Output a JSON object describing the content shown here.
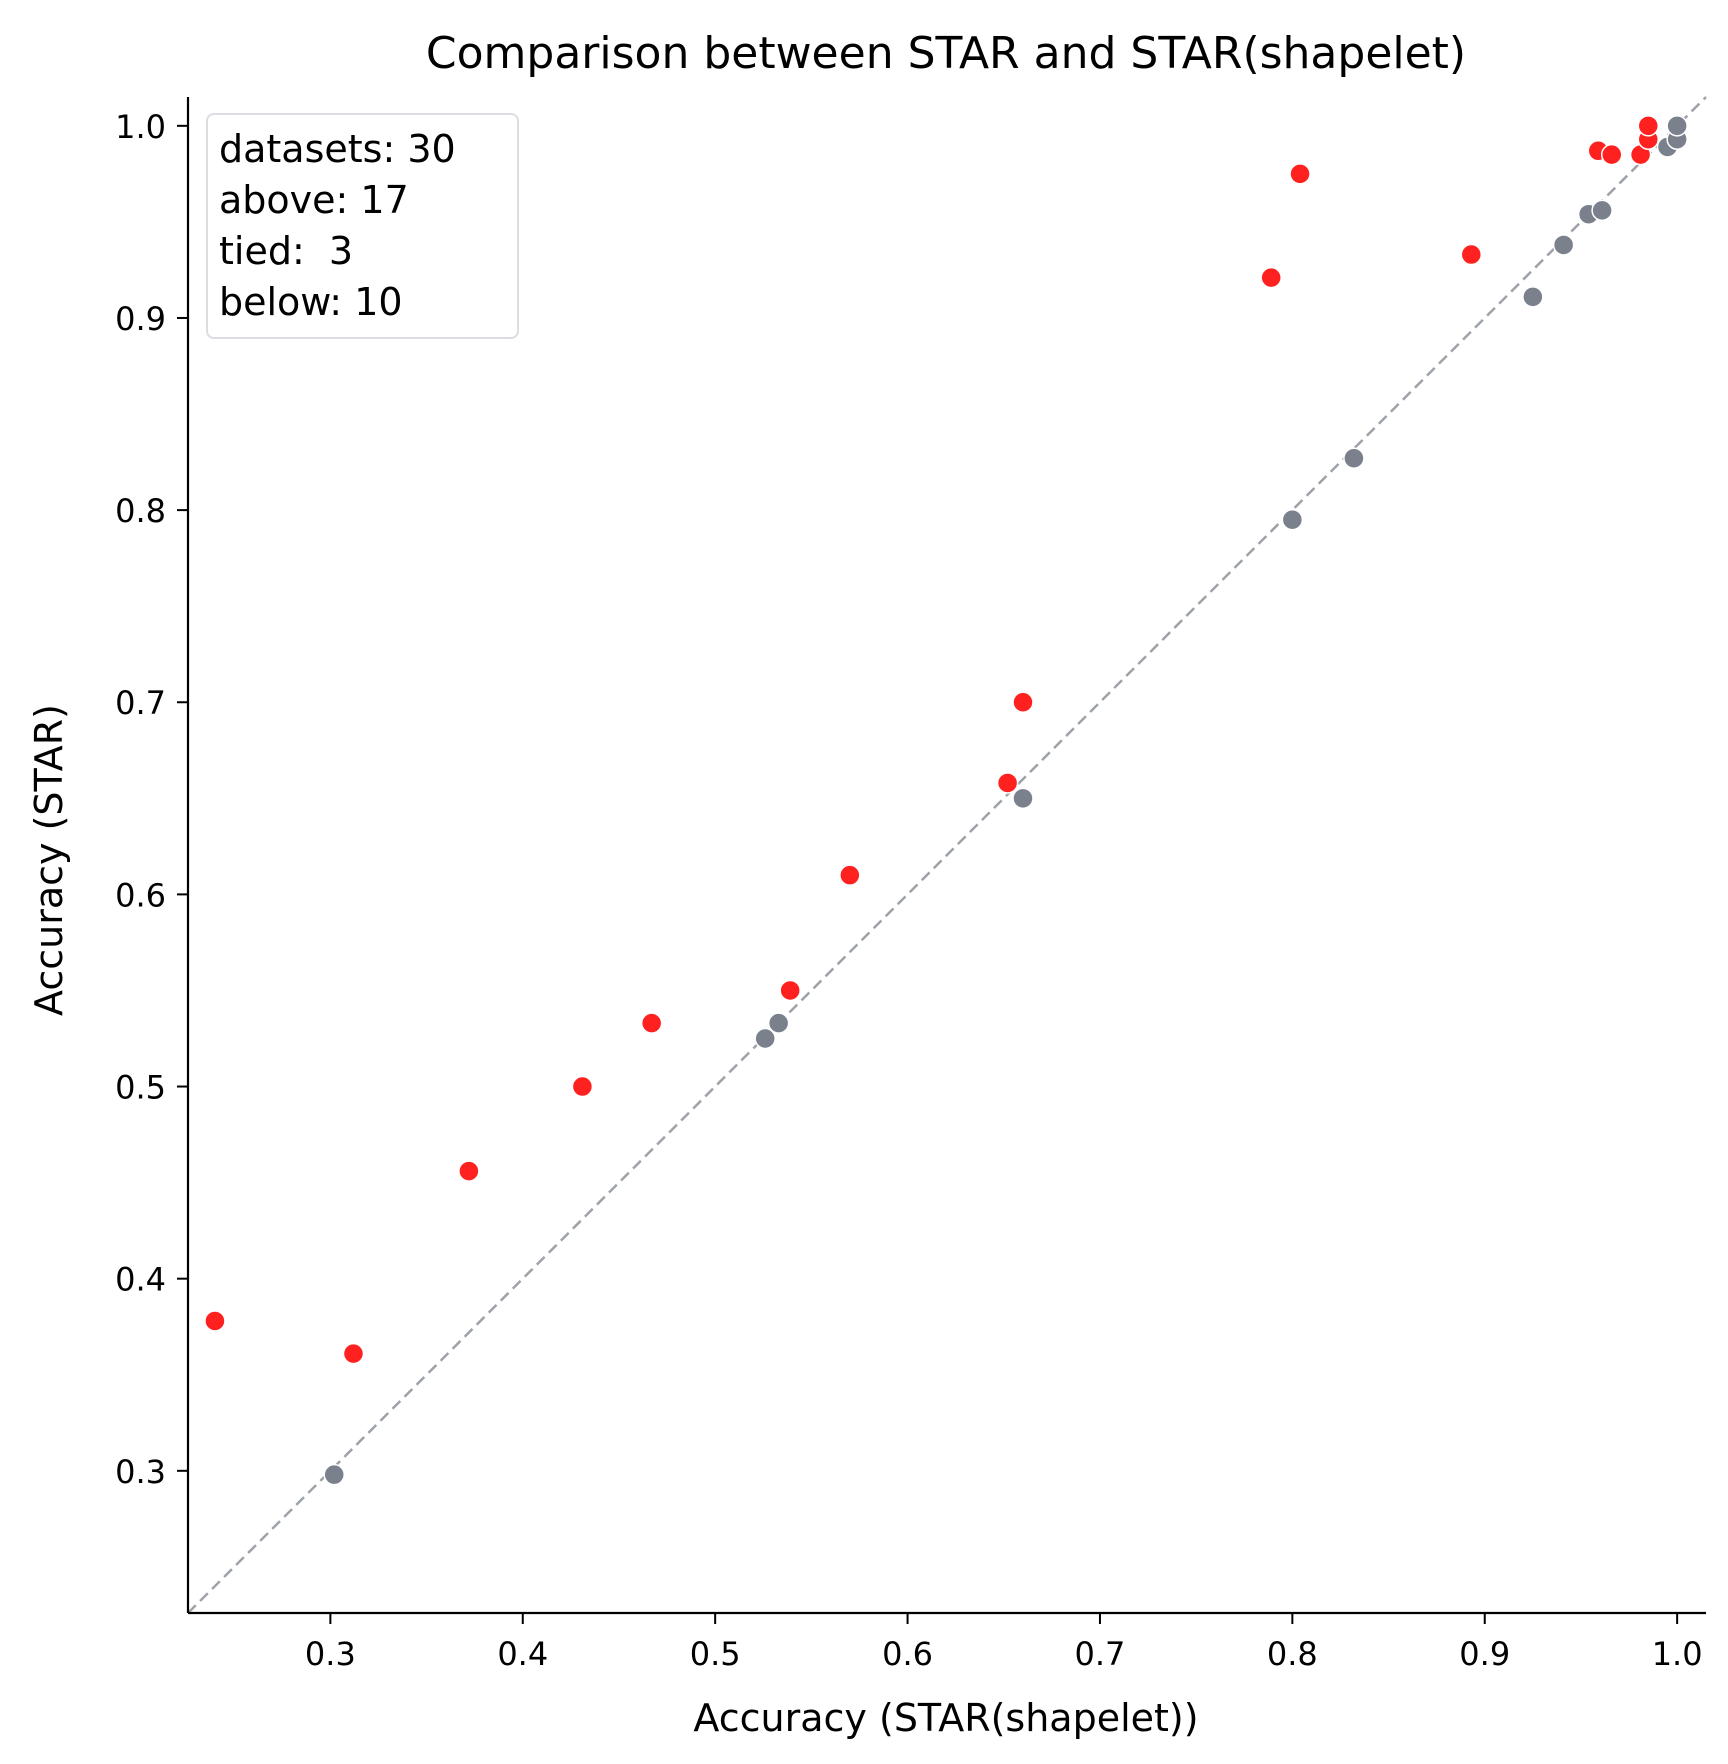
{
  "chart_data": {
    "type": "scatter",
    "title": "Comparison between STAR and STAR(shapelet)",
    "xlabel": "Accuracy (STAR(shapelet))",
    "ylabel": "Accuracy (STAR)",
    "xlim": [
      0.226,
      1.015
    ],
    "ylim": [
      0.226,
      1.015
    ],
    "xticks": [
      "0.3",
      "0.4",
      "0.5",
      "0.6",
      "0.7",
      "0.8",
      "0.9",
      "1.0"
    ],
    "yticks": [
      "0.3",
      "0.4",
      "0.5",
      "0.6",
      "0.7",
      "0.8",
      "0.9",
      "1.0"
    ],
    "diagonal": true,
    "grid": false,
    "legend_placement": "top-left",
    "stats_box": [
      "datasets: 30",
      "above: 17",
      "tied:  3",
      "below: 10"
    ],
    "colors": {
      "above": "#ff2020",
      "tied_or_below": "#7a818c",
      "diagonal": "#9ea2aa"
    },
    "series": [
      {
        "group": "above",
        "points": [
          [
            0.24,
            0.378
          ],
          [
            0.312,
            0.361
          ],
          [
            0.372,
            0.456
          ],
          [
            0.431,
            0.5
          ],
          [
            0.467,
            0.533
          ],
          [
            0.539,
            0.55
          ],
          [
            0.57,
            0.61
          ],
          [
            0.652,
            0.658
          ],
          [
            0.66,
            0.7
          ],
          [
            0.789,
            0.921
          ],
          [
            0.804,
            0.975
          ],
          [
            0.893,
            0.933
          ],
          [
            0.959,
            0.987
          ],
          [
            0.966,
            0.985
          ],
          [
            0.981,
            0.985
          ],
          [
            0.985,
            0.993
          ],
          [
            0.985,
            1.0
          ]
        ]
      },
      {
        "group": "tied_or_below",
        "points": [
          [
            0.302,
            0.298
          ],
          [
            0.526,
            0.525
          ],
          [
            0.533,
            0.533
          ],
          [
            0.66,
            0.65
          ],
          [
            0.8,
            0.795
          ],
          [
            0.832,
            0.827
          ],
          [
            0.925,
            0.911
          ],
          [
            0.941,
            0.938
          ],
          [
            0.954,
            0.954
          ],
          [
            0.961,
            0.956
          ],
          [
            0.995,
            0.989
          ],
          [
            1.0,
            0.993
          ],
          [
            1.0,
            1.0
          ]
        ]
      }
    ]
  }
}
